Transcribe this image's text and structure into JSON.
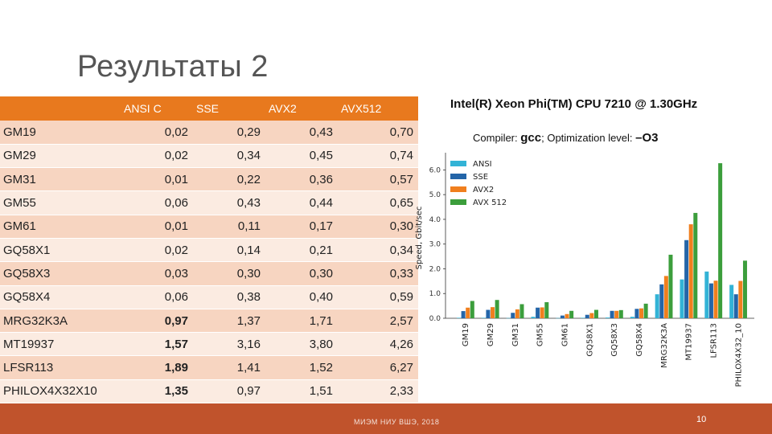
{
  "slide": {
    "title": "Результаты 2",
    "footer": "МИЭМ НИУ ВШЭ, 2018",
    "page": "10"
  },
  "table": {
    "headers": [
      "",
      "ANSI C",
      "SSE",
      "AVX2",
      "AVX512"
    ],
    "rows": [
      {
        "name": "GM19",
        "v": [
          "0,02",
          "0,29",
          "0,43",
          "0,70"
        ]
      },
      {
        "name": "GM29",
        "v": [
          "0,02",
          "0,34",
          "0,45",
          "0,74"
        ]
      },
      {
        "name": "GM31",
        "v": [
          "0,01",
          "0,22",
          "0,36",
          "0,57"
        ]
      },
      {
        "name": "GM55",
        "v": [
          "0,06",
          "0,43",
          "0,44",
          "0,65"
        ]
      },
      {
        "name": "GM61",
        "v": [
          "0,01",
          "0,11",
          "0,17",
          "0,30"
        ]
      },
      {
        "name": "GQ58X1",
        "v": [
          "0,02",
          "0,14",
          "0,21",
          "0,34"
        ]
      },
      {
        "name": "GQ58X3",
        "v": [
          "0,03",
          "0,30",
          "0,30",
          "0,33"
        ]
      },
      {
        "name": "GQ58X4",
        "v": [
          "0,06",
          "0,38",
          "0,40",
          "0,59"
        ]
      },
      {
        "name": "MRG32K3A",
        "v": [
          "0,97",
          "1,37",
          "1,71",
          "2,57"
        ]
      },
      {
        "name": "MT19937",
        "v": [
          "1,57",
          "3,16",
          "3,80",
          "4,26"
        ]
      },
      {
        "name": "LFSR113",
        "v": [
          "1,89",
          "1,41",
          "1,52",
          "6,27"
        ]
      },
      {
        "name": "PHILOX4X32X10",
        "v": [
          "1,35",
          "0,97",
          "1,51",
          "2,33"
        ]
      }
    ]
  },
  "info": {
    "cpu": "Intel(R) Xeon Phi(TM) CPU 7210 @ 1.30GHz",
    "compiler_label": "Compiler:",
    "compiler": "gcc",
    "opt_label": "; Optimization level:",
    "opt": "–O3"
  },
  "colors": {
    "ANSI": "#33b3d6",
    "SSE": "#2465a8",
    "AVX2": "#f07f1e",
    "AVX 512": "#3c9e3c"
  },
  "chart_data": {
    "type": "bar",
    "ylabel": "Speed, Gbit/sec",
    "ylim": [
      0,
      6.5
    ],
    "yticks": [
      "0.0",
      "1.0",
      "2.0",
      "3.0",
      "4.0",
      "5.0",
      "6.0"
    ],
    "categories": [
      "GM19",
      "GM29",
      "GM31",
      "GM55",
      "GM61",
      "GQ58X1",
      "GQ58X3",
      "GQ58X4",
      "MRG32K3A",
      "MT19937",
      "LFSR113",
      "PHILOX4X32_10"
    ],
    "series": [
      {
        "name": "ANSI",
        "values": [
          0.02,
          0.02,
          0.01,
          0.06,
          0.01,
          0.02,
          0.03,
          0.06,
          0.97,
          1.57,
          1.89,
          1.35
        ]
      },
      {
        "name": "SSE",
        "values": [
          0.29,
          0.34,
          0.22,
          0.43,
          0.11,
          0.14,
          0.3,
          0.38,
          1.37,
          3.16,
          1.41,
          0.97
        ]
      },
      {
        "name": "AVX2",
        "values": [
          0.43,
          0.45,
          0.36,
          0.44,
          0.17,
          0.21,
          0.3,
          0.4,
          1.71,
          3.8,
          1.52,
          1.51
        ]
      },
      {
        "name": "AVX 512",
        "values": [
          0.7,
          0.74,
          0.57,
          0.65,
          0.3,
          0.34,
          0.33,
          0.59,
          2.57,
          4.26,
          6.27,
          2.33
        ]
      }
    ]
  }
}
